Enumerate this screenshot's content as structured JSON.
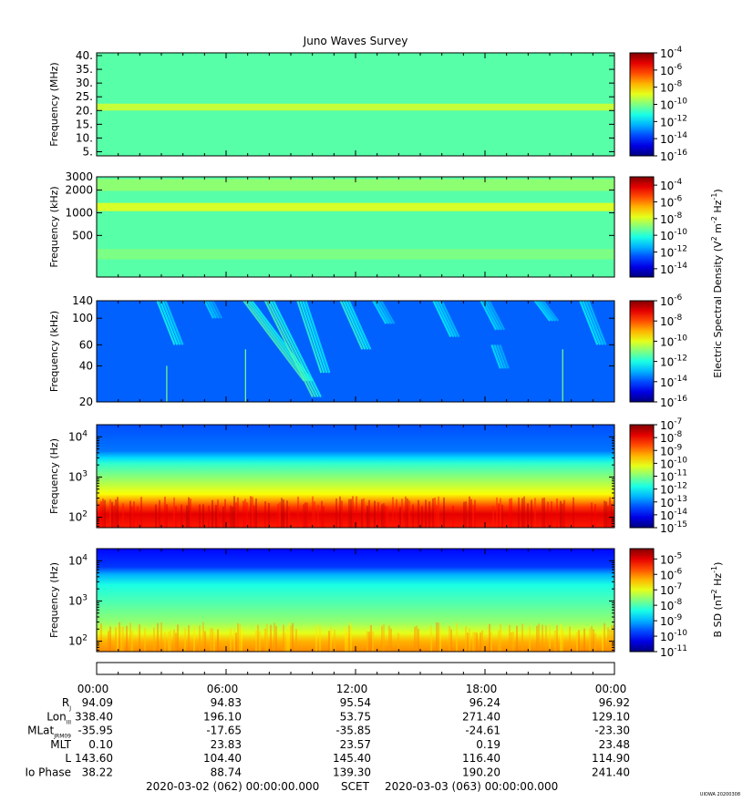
{
  "chart_data": {
    "type": "heatmap",
    "title": "Juno Waves Survey",
    "panels": [
      {
        "id": "hfr-high",
        "ylabel": "Frequency (MHz)",
        "yscale": "linear",
        "ylim": [
          3.5,
          41
        ],
        "yticks": [
          {
            "v": 40,
            "label": "40."
          },
          {
            "v": 35,
            "label": "35."
          },
          {
            "v": 30,
            "label": "30."
          },
          {
            "v": 25,
            "label": "25."
          },
          {
            "v": 20,
            "label": "20."
          },
          {
            "v": 15,
            "label": "15."
          },
          {
            "v": 10,
            "label": "10."
          },
          {
            "v": 5,
            "label": "5."
          }
        ],
        "yminor": [],
        "background_level": 0.46,
        "colorbar": {
          "ticks": [
            {
              "exp": "-4",
              "f": 0.0
            },
            {
              "exp": "-6",
              "f": 0.167
            },
            {
              "exp": "-8",
              "f": 0.333
            },
            {
              "exp": "-10",
              "f": 0.5
            },
            {
              "exp": "-12",
              "f": 0.667
            },
            {
              "exp": "-14",
              "f": 0.833
            },
            {
              "exp": "-16",
              "f": 1.0
            }
          ]
        },
        "features": [
          {
            "type": "band",
            "y0": 20.0,
            "y1": 22.5,
            "level": 0.58
          }
        ]
      },
      {
        "id": "hfr-low",
        "ylabel": "Frequency (kHz)",
        "yscale": "log",
        "ylim": [
          140,
          3000
        ],
        "yticks": [
          {
            "v": 3000,
            "label": "3000"
          },
          {
            "v": 2000,
            "label": "2000"
          },
          {
            "v": 1000,
            "label": "1000"
          },
          {
            "v": 500,
            "label": "500"
          }
        ],
        "yminor": [],
        "background_level": 0.46,
        "colorbar": {
          "ticks": [
            {
              "exp": "-4",
              "f": 0.083
            },
            {
              "exp": "-6",
              "f": 0.25
            },
            {
              "exp": "-8",
              "f": 0.417
            },
            {
              "exp": "-10",
              "f": 0.583
            },
            {
              "exp": "-12",
              "f": 0.75
            },
            {
              "exp": "-14",
              "f": 0.917
            }
          ]
        },
        "features": [
          {
            "type": "band",
            "y0": 1050,
            "y1": 1350,
            "level": 0.6
          },
          {
            "type": "band",
            "y0": 1950,
            "y1": 2800,
            "level": 0.52
          },
          {
            "type": "band",
            "y0": 240,
            "y1": 330,
            "level": 0.5
          }
        ]
      },
      {
        "id": "lfr-high",
        "ylabel": "Frequency (kHz)",
        "yscale": "log",
        "ylim": [
          20,
          140
        ],
        "yticks": [
          {
            "v": 140,
            "label": "140"
          },
          {
            "v": 100,
            "label": "100"
          },
          {
            "v": 60,
            "label": "60"
          },
          {
            "v": 40,
            "label": "40"
          },
          {
            "v": 20,
            "label": "20"
          }
        ],
        "yminor": [],
        "background_level": 0.22,
        "colorbar": {
          "ticks": [
            {
              "exp": "-6",
              "f": 0.0
            },
            {
              "exp": "-8",
              "f": 0.2
            },
            {
              "exp": "-10",
              "f": 0.4
            },
            {
              "exp": "-12",
              "f": 0.6
            },
            {
              "exp": "-14",
              "f": 0.8
            },
            {
              "exp": "-16",
              "f": 1.0
            }
          ]
        },
        "features": [
          {
            "type": "streak",
            "x0": 3.0,
            "x1": 3.8,
            "y0": 140,
            "y1": 60,
            "level": 0.4
          },
          {
            "type": "streak",
            "x0": 5.2,
            "x1": 5.6,
            "y0": 140,
            "y1": 100,
            "level": 0.35
          },
          {
            "type": "streak",
            "x0": 7.0,
            "x1": 9.8,
            "y0": 140,
            "y1": 30,
            "level": 0.45
          },
          {
            "type": "streak",
            "x0": 8.0,
            "x1": 10.2,
            "y0": 140,
            "y1": 22,
            "level": 0.45
          },
          {
            "type": "streak",
            "x0": 9.5,
            "x1": 10.6,
            "y0": 140,
            "y1": 35,
            "level": 0.42
          },
          {
            "type": "streak",
            "x0": 11.5,
            "x1": 12.5,
            "y0": 140,
            "y1": 55,
            "level": 0.42
          },
          {
            "type": "streak",
            "x0": 13.0,
            "x1": 13.6,
            "y0": 140,
            "y1": 90,
            "level": 0.36
          },
          {
            "type": "streak",
            "x0": 15.8,
            "x1": 16.6,
            "y0": 140,
            "y1": 70,
            "level": 0.38
          },
          {
            "type": "streak",
            "x0": 18.0,
            "x1": 18.7,
            "y0": 140,
            "y1": 80,
            "level": 0.36
          },
          {
            "type": "streak",
            "x0": 18.5,
            "x1": 18.9,
            "y0": 60,
            "y1": 38,
            "level": 0.36
          },
          {
            "type": "streak",
            "x0": 20.5,
            "x1": 21.2,
            "y0": 140,
            "y1": 95,
            "level": 0.36
          },
          {
            "type": "streak",
            "x0": 22.6,
            "x1": 23.4,
            "y0": 140,
            "y1": 60,
            "level": 0.38
          },
          {
            "type": "line",
            "x": 3.25,
            "y0": 40,
            "y1": 20,
            "level": 0.5
          },
          {
            "type": "line",
            "x": 6.9,
            "y0": 55,
            "y1": 20,
            "level": 0.5
          },
          {
            "type": "line",
            "x": 21.6,
            "y0": 55,
            "y1": 20,
            "level": 0.5
          }
        ]
      },
      {
        "id": "lfr-low",
        "ylabel": "Frequency (Hz)",
        "yscale": "log",
        "ylim": [
          55,
          20000
        ],
        "yticks": [
          {
            "v": 10000,
            "label": "10",
            "exp": "4"
          },
          {
            "v": 1000,
            "label": "10",
            "exp": "3"
          },
          {
            "v": 100,
            "label": "10",
            "exp": "2"
          }
        ],
        "yminor": [
          60,
          70,
          80,
          90,
          200,
          300,
          400,
          500,
          600,
          700,
          800,
          900,
          2000,
          3000,
          4000,
          5000,
          6000,
          7000,
          8000,
          9000,
          20000
        ],
        "background_level": 0.2,
        "colorbar": {
          "ticks": [
            {
              "exp": "-7",
              "f": 0.0
            },
            {
              "exp": "-8",
              "f": 0.125
            },
            {
              "exp": "-9",
              "f": 0.25
            },
            {
              "exp": "-10",
              "f": 0.375
            },
            {
              "exp": "-11",
              "f": 0.5
            },
            {
              "exp": "-12",
              "f": 0.625
            },
            {
              "exp": "-13",
              "f": 0.75
            },
            {
              "exp": "-14",
              "f": 0.875
            },
            {
              "exp": "-15",
              "f": 1.0
            }
          ]
        },
        "features": [
          {
            "type": "gradient",
            "stops": [
              [
                55,
                0.85
              ],
              [
                120,
                0.9
              ],
              [
                180,
                0.82
              ],
              [
                260,
                0.72
              ],
              [
                380,
                0.62
              ],
              [
                700,
                0.55
              ],
              [
                1300,
                0.48
              ],
              [
                2200,
                0.42
              ],
              [
                3000,
                0.34
              ],
              [
                4500,
                0.24
              ],
              [
                20000,
                0.2
              ]
            ]
          }
        ]
      },
      {
        "id": "mag",
        "ylabel": "Frequency (Hz)",
        "yscale": "log",
        "ylim": [
          55,
          20000
        ],
        "yticks": [
          {
            "v": 10000,
            "label": "10",
            "exp": "4"
          },
          {
            "v": 1000,
            "label": "10",
            "exp": "3"
          },
          {
            "v": 100,
            "label": "10",
            "exp": "2"
          }
        ],
        "yminor": [
          60,
          70,
          80,
          90,
          200,
          300,
          400,
          500,
          600,
          700,
          800,
          900,
          2000,
          3000,
          4000,
          5000,
          6000,
          7000,
          8000,
          9000,
          20000
        ],
        "background_level": 0.15,
        "colorbar": {
          "ticks": [
            {
              "exp": "-5",
              "f": 0.1
            },
            {
              "exp": "-6",
              "f": 0.25
            },
            {
              "exp": "-7",
              "f": 0.4
            },
            {
              "exp": "-8",
              "f": 0.55
            },
            {
              "exp": "-9",
              "f": 0.7
            },
            {
              "exp": "-10",
              "f": 0.85
            },
            {
              "exp": "-11",
              "f": 1.0
            }
          ]
        },
        "features": [
          {
            "type": "gradient",
            "stops": [
              [
                55,
                0.74
              ],
              [
                100,
                0.7
              ],
              [
                160,
                0.6
              ],
              [
                300,
                0.52
              ],
              [
                800,
                0.46
              ],
              [
                2500,
                0.4
              ],
              [
                4500,
                0.3
              ],
              [
                7000,
                0.18
              ],
              [
                20000,
                0.13
              ]
            ]
          }
        ]
      }
    ],
    "colorbar_labels": {
      "electric": "Electric Spectral Density (V",
      "magnetic": "B SD (nT"
    },
    "x_axis": {
      "range": [
        0,
        24
      ],
      "ticks": [
        "00:00",
        "06:00",
        "12:00",
        "18:00",
        "00:00"
      ],
      "ephemeris": [
        {
          "label": "R",
          "sub": "J",
          "values": [
            "94.09",
            "94.83",
            "95.54",
            "96.24",
            "96.92"
          ]
        },
        {
          "label": "Lon",
          "sub": "III",
          "values": [
            "338.40",
            "196.10",
            "53.75",
            "271.40",
            "129.10"
          ]
        },
        {
          "label": "MLat",
          "sub": "JRM09",
          "values": [
            "-35.95",
            "-17.65",
            "-35.85",
            "-24.61",
            "-23.30"
          ]
        },
        {
          "label": "MLT",
          "sub": "",
          "values": [
            "0.10",
            "23.83",
            "23.57",
            "0.19",
            "23.48"
          ]
        },
        {
          "label": "L",
          "sub": "",
          "values": [
            "143.60",
            "104.40",
            "145.40",
            "116.40",
            "114.90"
          ]
        },
        {
          "label": "Io Phase",
          "sub": "",
          "values": [
            "38.22",
            "88.74",
            "139.30",
            "190.20",
            "241.40"
          ]
        }
      ],
      "time_range_start": "2020-03-02 (062) 00:00:00.000",
      "time_label": "SCET",
      "time_range_end": "2020-03-03 (063) 00:00:00.000"
    },
    "footer_stamp": "UIOWA 20200308"
  }
}
